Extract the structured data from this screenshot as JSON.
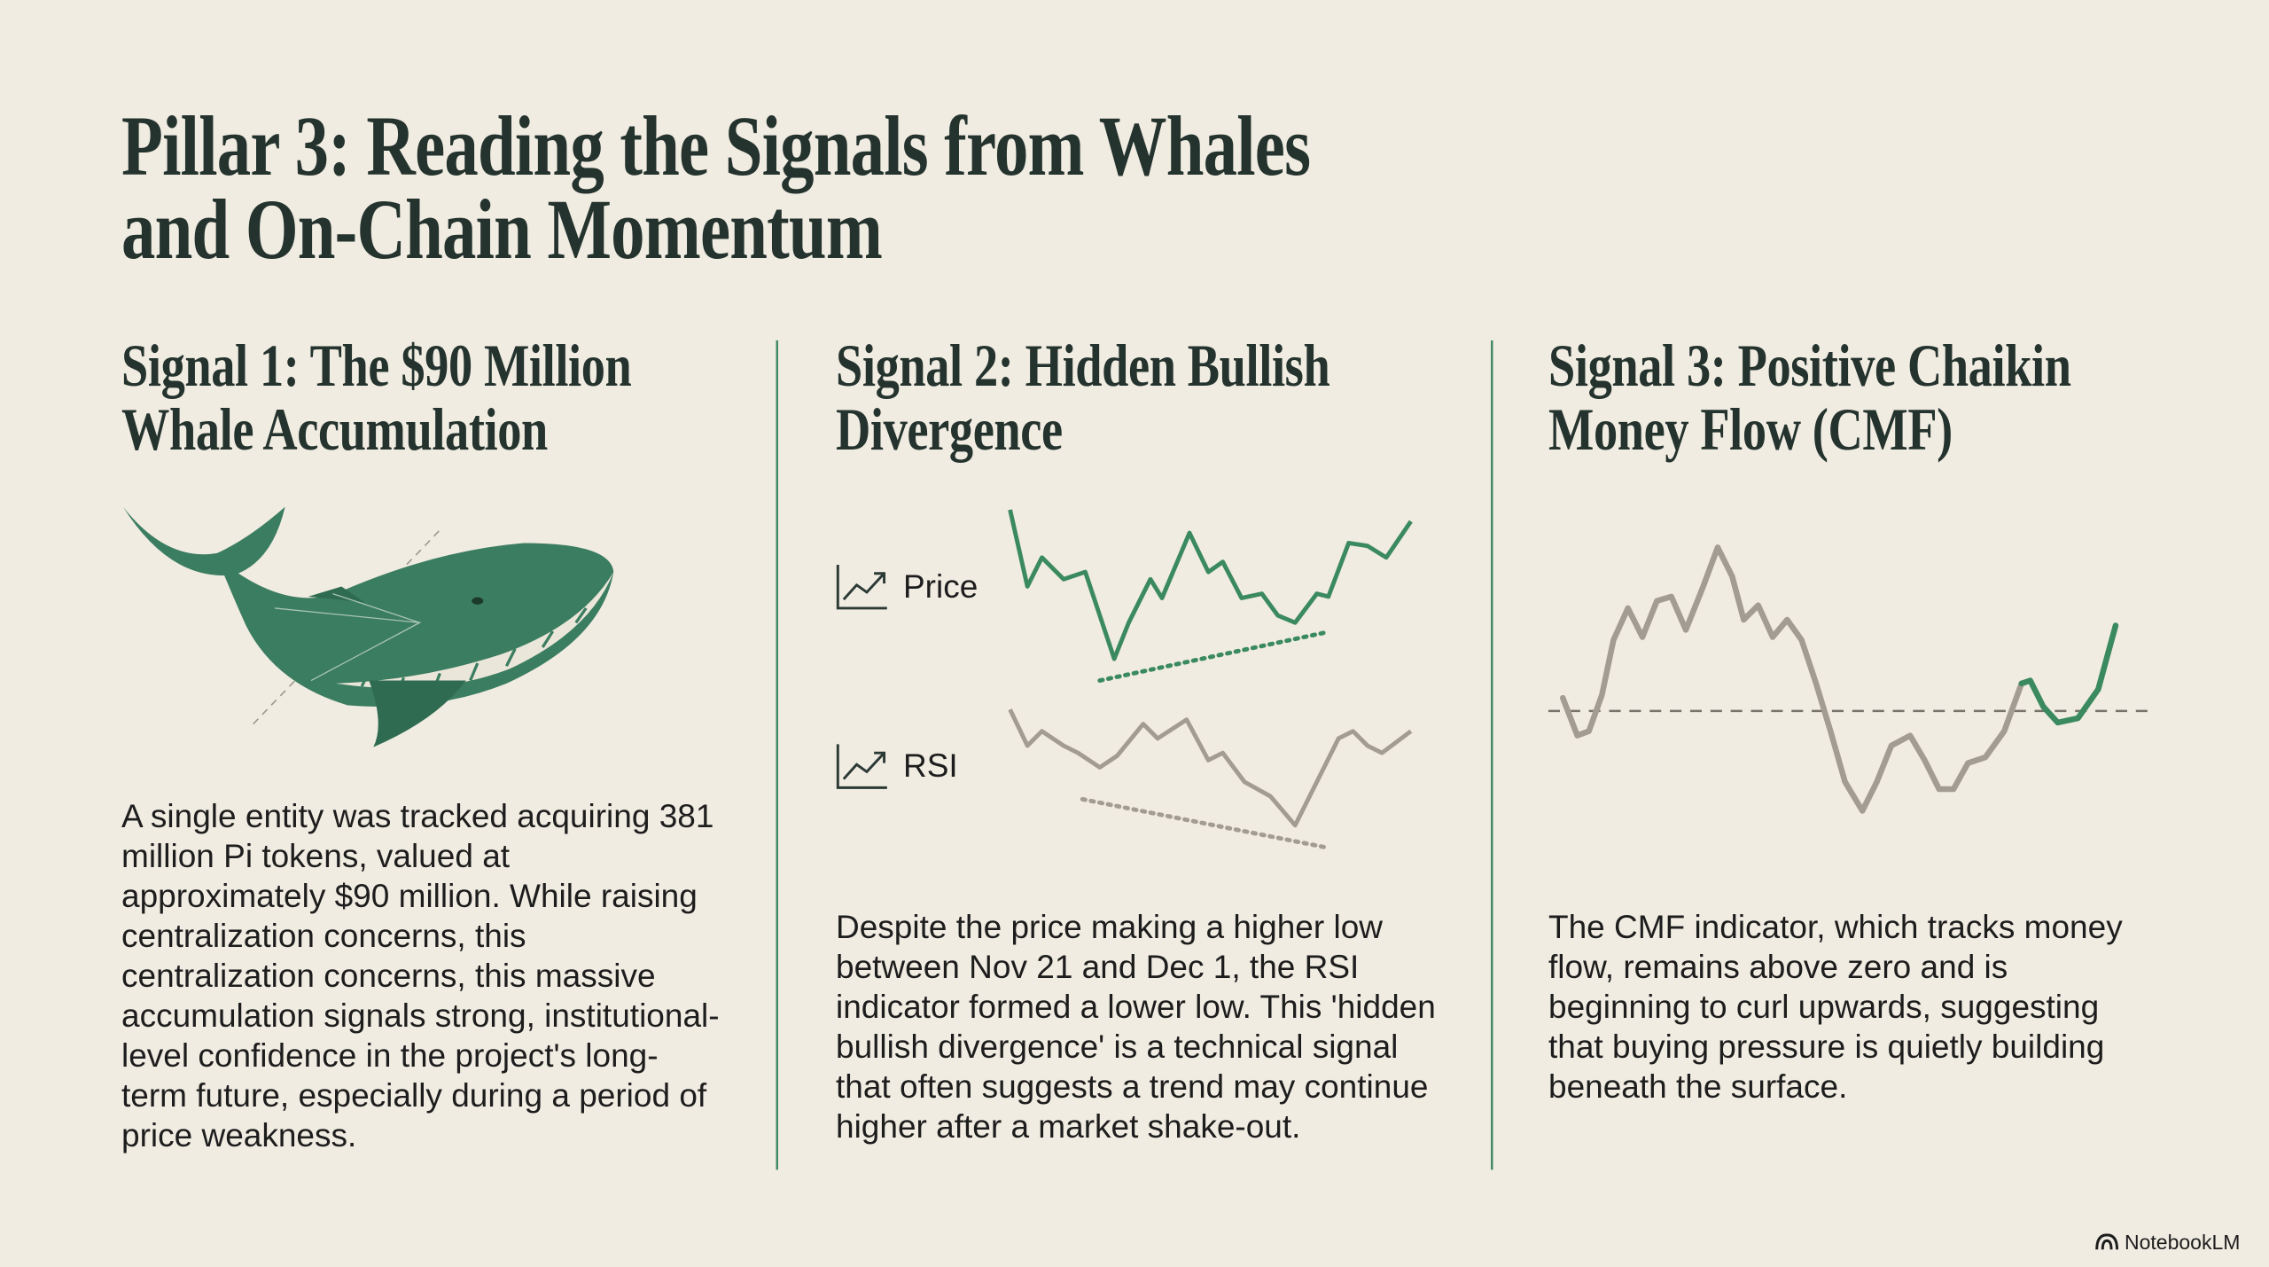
{
  "header": {
    "title_lines": [
      "Pillar 3: Reading the Signals from Whales",
      "and On-Chain Momentum"
    ]
  },
  "signals": [
    {
      "heading_lines": [
        "Signal 1: The $90 Million",
        "Whale Accumulation"
      ],
      "body": "A single entity was tracked acquiring 381 million Pi tokens, valued at approximately $90 million. While raising centralization concerns, this centralization concerns, this massive accumulation signals strong, institutional-level confidence in the project's long-term future, especially during a period of price weakness."
    },
    {
      "heading_lines": [
        "Signal 2: Hidden Bullish",
        "Divergence"
      ],
      "price_label": "Price",
      "rsi_label": "RSI",
      "body": "Despite the price making a higher low between Nov 21 and Dec 1, the RSI indicator formed a lower low. This 'hidden bullish divergence' is a technical signal that often suggests a trend may continue higher after a market shake-out."
    },
    {
      "heading_lines": [
        "Signal 3: Positive Chaikin",
        "Money Flow (CMF)"
      ],
      "body": "The CMF indicator, which tracks money flow, remains above zero and is beginning to curl upwards, suggesting that buying pressure is quietly building beneath the surface."
    }
  ],
  "footer": {
    "brand": "NotebookLM"
  }
}
